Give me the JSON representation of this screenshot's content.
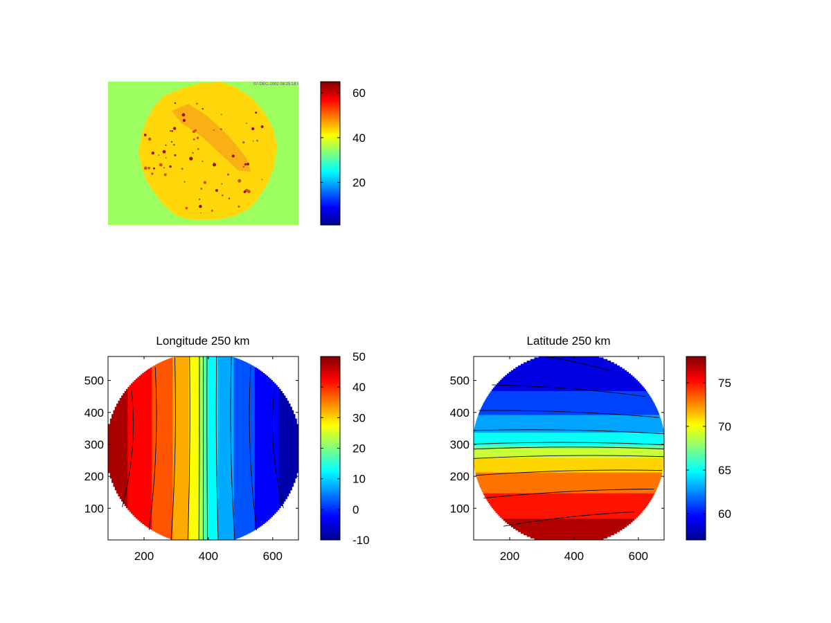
{
  "figure": {
    "background": "#ffffff",
    "colormap": "jet"
  },
  "chart_data": [
    {
      "type": "heatmap",
      "title": "",
      "xlabel": "",
      "ylabel": "",
      "axes_visible": false,
      "overlay_text": "07-DEC-2002 08:25:18 BFP",
      "description_values": {
        "background_level": 36,
        "disc_level": 43,
        "band_level": 48,
        "speck_level": 60
      },
      "colorbar": {
        "min": 1,
        "max": 65,
        "ticks": [
          20,
          40,
          60
        ],
        "tick_labels": [
          "20",
          "40",
          "60"
        ]
      }
    },
    {
      "type": "heatmap",
      "title": "Longitude 250 km",
      "xlabel": "",
      "ylabel": "",
      "xlim": [
        88,
        680
      ],
      "ylim": [
        1,
        575
      ],
      "xticks": [
        200,
        400,
        600
      ],
      "xtick_labels": [
        "200",
        "400",
        "600"
      ],
      "yticks": [
        100,
        200,
        300,
        400,
        500
      ],
      "ytick_labels": [
        "100",
        "200",
        "300",
        "400",
        "500"
      ],
      "circle": {
        "cx": 384,
        "cy": 287,
        "r": 300
      },
      "field": {
        "left_value": 50,
        "right_value": -10,
        "varies_along": "x"
      },
      "contour_levels": [
        -10,
        -5,
        0,
        5,
        10,
        15,
        20,
        25,
        30,
        35,
        40,
        45,
        50
      ],
      "colorbar": {
        "min": -10,
        "max": 50,
        "ticks": [
          -10,
          0,
          10,
          20,
          30,
          40,
          50
        ],
        "tick_labels": [
          "-10",
          "0",
          "10",
          "20",
          "30",
          "40",
          "50"
        ]
      }
    },
    {
      "type": "heatmap",
      "title": "Latitude 250 km",
      "xlabel": "",
      "ylabel": "",
      "xlim": [
        88,
        680
      ],
      "ylim": [
        1,
        575
      ],
      "xticks": [
        200,
        400,
        600
      ],
      "xtick_labels": [
        "200",
        "400",
        "600"
      ],
      "yticks": [
        100,
        200,
        300,
        400,
        500
      ],
      "ytick_labels": [
        "100",
        "200",
        "300",
        "400",
        "500"
      ],
      "circle": {
        "cx": 384,
        "cy": 287,
        "r": 300
      },
      "field": {
        "bottom_value": 78,
        "top_value": 57,
        "varies_along": "y"
      },
      "contour_levels": [
        58,
        60,
        62,
        64,
        66,
        68,
        70,
        72,
        74,
        76,
        78
      ],
      "colorbar": {
        "min": 57,
        "max": 78,
        "ticks": [
          60,
          65,
          70,
          75
        ],
        "tick_labels": [
          "60",
          "65",
          "70",
          "75"
        ]
      }
    }
  ]
}
